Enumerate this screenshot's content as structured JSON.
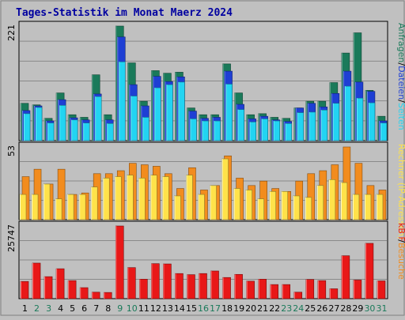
{
  "title": "Tages-Statistik im Monat Maerz 2024",
  "colors": {
    "background": "#c0c0c0",
    "title": "#0000a0",
    "anfragen": "#1a7a5a",
    "dateien": "#1e3fd4",
    "seiten": "#22d4f2",
    "besuche": "#f28c1e",
    "rechner": "#ffe24a",
    "kbf": "#e81818",
    "weekend": "#1a7a5a",
    "weekday": "#000000"
  },
  "chart_data": [
    {
      "type": "bar",
      "panel": "requests",
      "ymax_label": "221",
      "side_legend": [
        "Anfragen",
        "Dateien",
        "Seiten"
      ],
      "side_legend_separators": [
        "/",
        "/"
      ],
      "categories": [
        "1",
        "2",
        "3",
        "4",
        "5",
        "6",
        "7",
        "8",
        "9",
        "10",
        "11",
        "12",
        "13",
        "14",
        "15",
        "16",
        "17",
        "18",
        "19",
        "20",
        "21",
        "22",
        "23",
        "24",
        "25",
        "26",
        "27",
        "28",
        "29",
        "30",
        "31"
      ],
      "series": [
        {
          "name": "Anfragen",
          "values": [
            72,
            69,
            43,
            92,
            50,
            45,
            127,
            50,
            221,
            150,
            76,
            135,
            130,
            132,
            63,
            50,
            50,
            148,
            92,
            50,
            52,
            45,
            43,
            63,
            76,
            76,
            112,
            169,
            208,
            97,
            47
          ]
        },
        {
          "name": "Dateien",
          "values": [
            58,
            67,
            38,
            79,
            44,
            40,
            90,
            40,
            200,
            108,
            67,
            124,
            114,
            123,
            57,
            43,
            45,
            134,
            70,
            42,
            47,
            40,
            37,
            63,
            72,
            65,
            91,
            134,
            113,
            95,
            38
          ]
        },
        {
          "name": "Seiten",
          "values": [
            52,
            64,
            34,
            68,
            40,
            34,
            85,
            33,
            152,
            86,
            45,
            102,
            108,
            113,
            42,
            38,
            38,
            109,
            60,
            36,
            42,
            38,
            33,
            54,
            55,
            59,
            72,
            105,
            82,
            73,
            34
          ]
        }
      ]
    },
    {
      "type": "bar",
      "panel": "visits",
      "ymax_label": "53",
      "side_legend": [
        "Rechner (IP-Adressen)",
        "Besuche"
      ],
      "side_legend_separators": [
        "/"
      ],
      "categories": [
        "1",
        "2",
        "3",
        "4",
        "5",
        "6",
        "7",
        "8",
        "9",
        "10",
        "11",
        "12",
        "13",
        "14",
        "15",
        "16",
        "17",
        "18",
        "19",
        "20",
        "21",
        "22",
        "23",
        "24",
        "25",
        "26",
        "27",
        "28",
        "29",
        "30",
        "31"
      ],
      "series": [
        {
          "name": "Besuche",
          "values": [
            29,
            34,
            24,
            34,
            17,
            18,
            31,
            31,
            33,
            38,
            37,
            36,
            31,
            21,
            35,
            20,
            23,
            43,
            28,
            23,
            26,
            21,
            19,
            26,
            31,
            33,
            37,
            49,
            38,
            23,
            20
          ]
        },
        {
          "name": "Rechner (IP-Adressen)",
          "values": [
            17,
            17,
            24,
            14,
            17,
            17,
            22,
            28,
            29,
            30,
            28,
            30,
            29,
            16,
            30,
            17,
            23,
            41,
            21,
            20,
            14,
            19,
            19,
            16,
            15,
            23,
            27,
            25,
            17,
            17,
            17
          ]
        }
      ]
    },
    {
      "type": "bar",
      "panel": "kbytes",
      "ymax_label": "25747",
      "side_legend": [
        "kB F"
      ],
      "categories": [
        "1",
        "2",
        "3",
        "4",
        "5",
        "6",
        "7",
        "8",
        "9",
        "10",
        "11",
        "12",
        "13",
        "14",
        "15",
        "16",
        "17",
        "18",
        "19",
        "20",
        "21",
        "22",
        "23",
        "24",
        "25",
        "26",
        "27",
        "28",
        "29",
        "30",
        "31"
      ],
      "series": [
        {
          "name": "kB F",
          "values": [
            6100,
            12600,
            7800,
            10600,
            6400,
            3900,
            2300,
            2200,
            25747,
            11000,
            6900,
            12400,
            12300,
            8900,
            8500,
            8900,
            9800,
            7500,
            8600,
            6200,
            6900,
            5000,
            5000,
            2300,
            6800,
            6400,
            3500,
            15200,
            6600,
            19600,
            6300
          ]
        }
      ]
    }
  ],
  "weekend_days": [
    "2",
    "3",
    "9",
    "10",
    "16",
    "17",
    "23",
    "24",
    "30",
    "31"
  ]
}
